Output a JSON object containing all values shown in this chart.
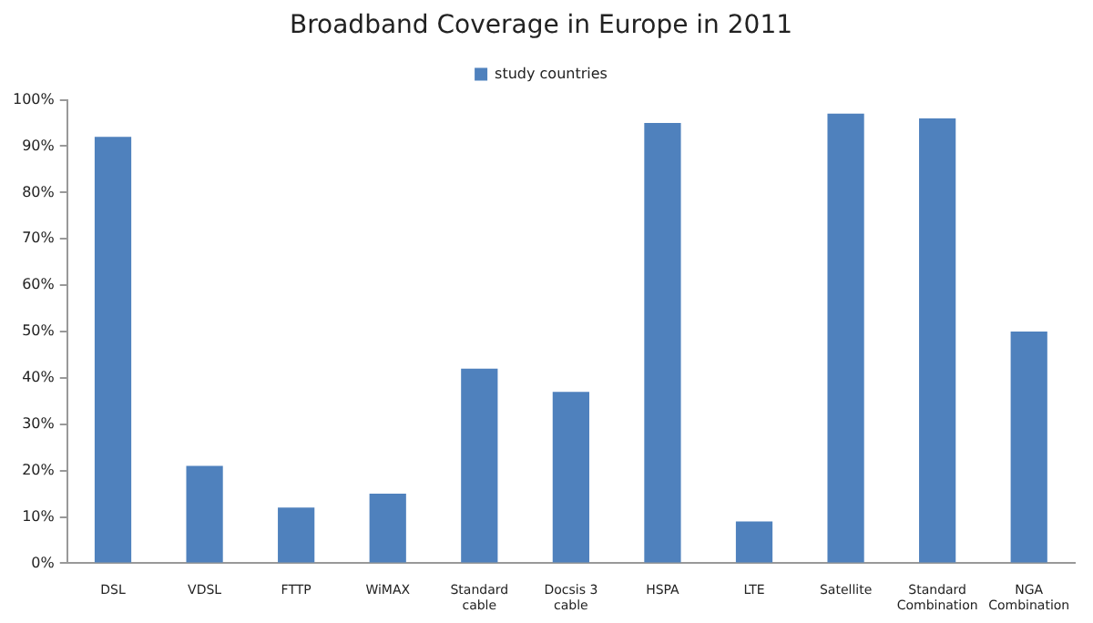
{
  "chart_data": {
    "type": "bar",
    "title": "Broadband Coverage in Europe in 2011",
    "categories": [
      "DSL",
      "VDSL",
      "FTTP",
      "WiMAX",
      "Standard\ncable",
      "Docsis 3\ncable",
      "HSPA",
      "LTE",
      "Satellite",
      "Standard\nCombination",
      "NGA\nCombination"
    ],
    "series": [
      {
        "name": "study countries",
        "color": "#4f81bd",
        "values": [
          92,
          21,
          12,
          15,
          42,
          37,
          95,
          9,
          97,
          96,
          50
        ]
      }
    ],
    "ylim": [
      0,
      100
    ],
    "yticks": [
      {
        "value": 0,
        "label": "0%"
      },
      {
        "value": 10,
        "label": "10%"
      },
      {
        "value": 20,
        "label": "20%"
      },
      {
        "value": 30,
        "label": "30%"
      },
      {
        "value": 40,
        "label": "40%"
      },
      {
        "value": 50,
        "label": "50%"
      },
      {
        "value": 60,
        "label": "60%"
      },
      {
        "value": 70,
        "label": "70%"
      },
      {
        "value": 80,
        "label": "80%"
      },
      {
        "value": 90,
        "label": "90%"
      },
      {
        "value": 100,
        "label": "100%"
      }
    ],
    "grid": false,
    "legend": "top"
  }
}
